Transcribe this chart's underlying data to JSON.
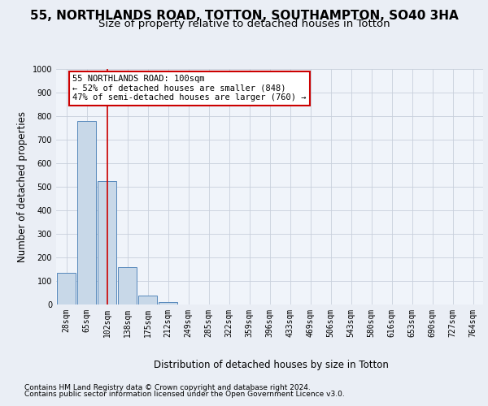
{
  "title": "55, NORTHLANDS ROAD, TOTTON, SOUTHAMPTON, SO40 3HA",
  "subtitle": "Size of property relative to detached houses in Totton",
  "xlabel": "Distribution of detached houses by size in Totton",
  "ylabel": "Number of detached properties",
  "bar_labels": [
    "28sqm",
    "65sqm",
    "102sqm",
    "138sqm",
    "175sqm",
    "212sqm",
    "249sqm",
    "285sqm",
    "322sqm",
    "359sqm",
    "396sqm",
    "433sqm",
    "469sqm",
    "506sqm",
    "543sqm",
    "580sqm",
    "616sqm",
    "653sqm",
    "690sqm",
    "727sqm",
    "764sqm"
  ],
  "bar_values": [
    133,
    778,
    524,
    158,
    37,
    12,
    0,
    0,
    0,
    0,
    0,
    0,
    0,
    0,
    0,
    0,
    0,
    0,
    0,
    0,
    0
  ],
  "bar_color": "#c8d8e8",
  "bar_edge_color": "#5588bb",
  "vline_x": 2,
  "vline_color": "#cc0000",
  "annotation_text": "55 NORTHLANDS ROAD: 100sqm\n← 52% of detached houses are smaller (848)\n47% of semi-detached houses are larger (760) →",
  "annotation_box_color": "#ffffff",
  "annotation_box_edge": "#cc0000",
  "ylim": [
    0,
    1000
  ],
  "yticks": [
    0,
    100,
    200,
    300,
    400,
    500,
    600,
    700,
    800,
    900,
    1000
  ],
  "footer_line1": "Contains HM Land Registry data © Crown copyright and database right 2024.",
  "footer_line2": "Contains public sector information licensed under the Open Government Licence v3.0.",
  "bg_color": "#eaeef5",
  "plot_bg_color": "#f0f4fa",
  "grid_color": "#c8d0dc",
  "title_fontsize": 11,
  "subtitle_fontsize": 9.5,
  "axis_label_fontsize": 8.5,
  "tick_fontsize": 7,
  "footer_fontsize": 6.5
}
